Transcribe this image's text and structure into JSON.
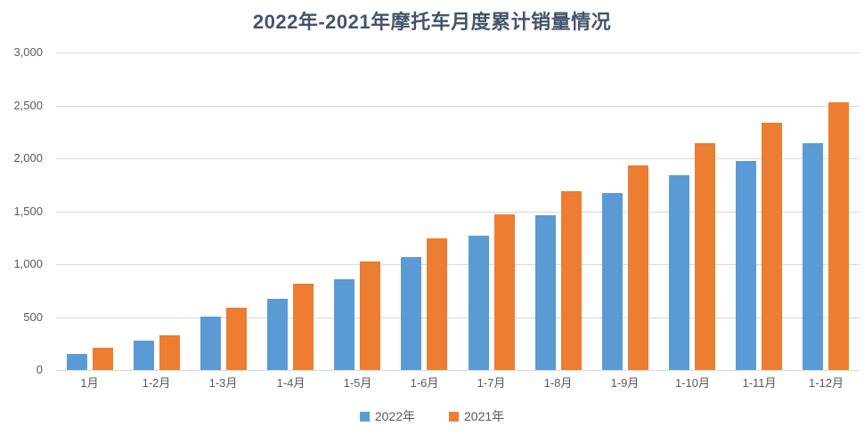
{
  "chart_data": {
    "type": "bar",
    "title": "2022年-2021年摩托车月度累计销量情况",
    "title_color": "#44546A",
    "categories": [
      "1月",
      "1-2月",
      "1-3月",
      "1-4月",
      "1-5月",
      "1-6月",
      "1-7月",
      "1-8月",
      "1-9月",
      "1-10月",
      "1-11月",
      "1-12月"
    ],
    "series": [
      {
        "name": "2022年",
        "color": "#5B9BD5",
        "values": [
          155,
          280,
          505,
          675,
          860,
          1065,
          1265,
          1462,
          1670,
          1838,
          1975,
          2142
        ]
      },
      {
        "name": "2021年",
        "color": "#ED7D31",
        "values": [
          212,
          325,
          588,
          818,
          1025,
          1243,
          1470,
          1693,
          1930,
          2142,
          2335,
          2530
        ]
      }
    ],
    "xlabel": "",
    "ylabel": "",
    "ylim": [
      0,
      3000
    ],
    "ytick_step": 500,
    "ytick_labels": [
      "0",
      "500",
      "1,000",
      "1,500",
      "2,000",
      "2,500",
      "3,000"
    ],
    "axis_text_color": "#595959",
    "gridline_color": "#D9D9D9",
    "grid": true,
    "legend_position": "bottom"
  }
}
